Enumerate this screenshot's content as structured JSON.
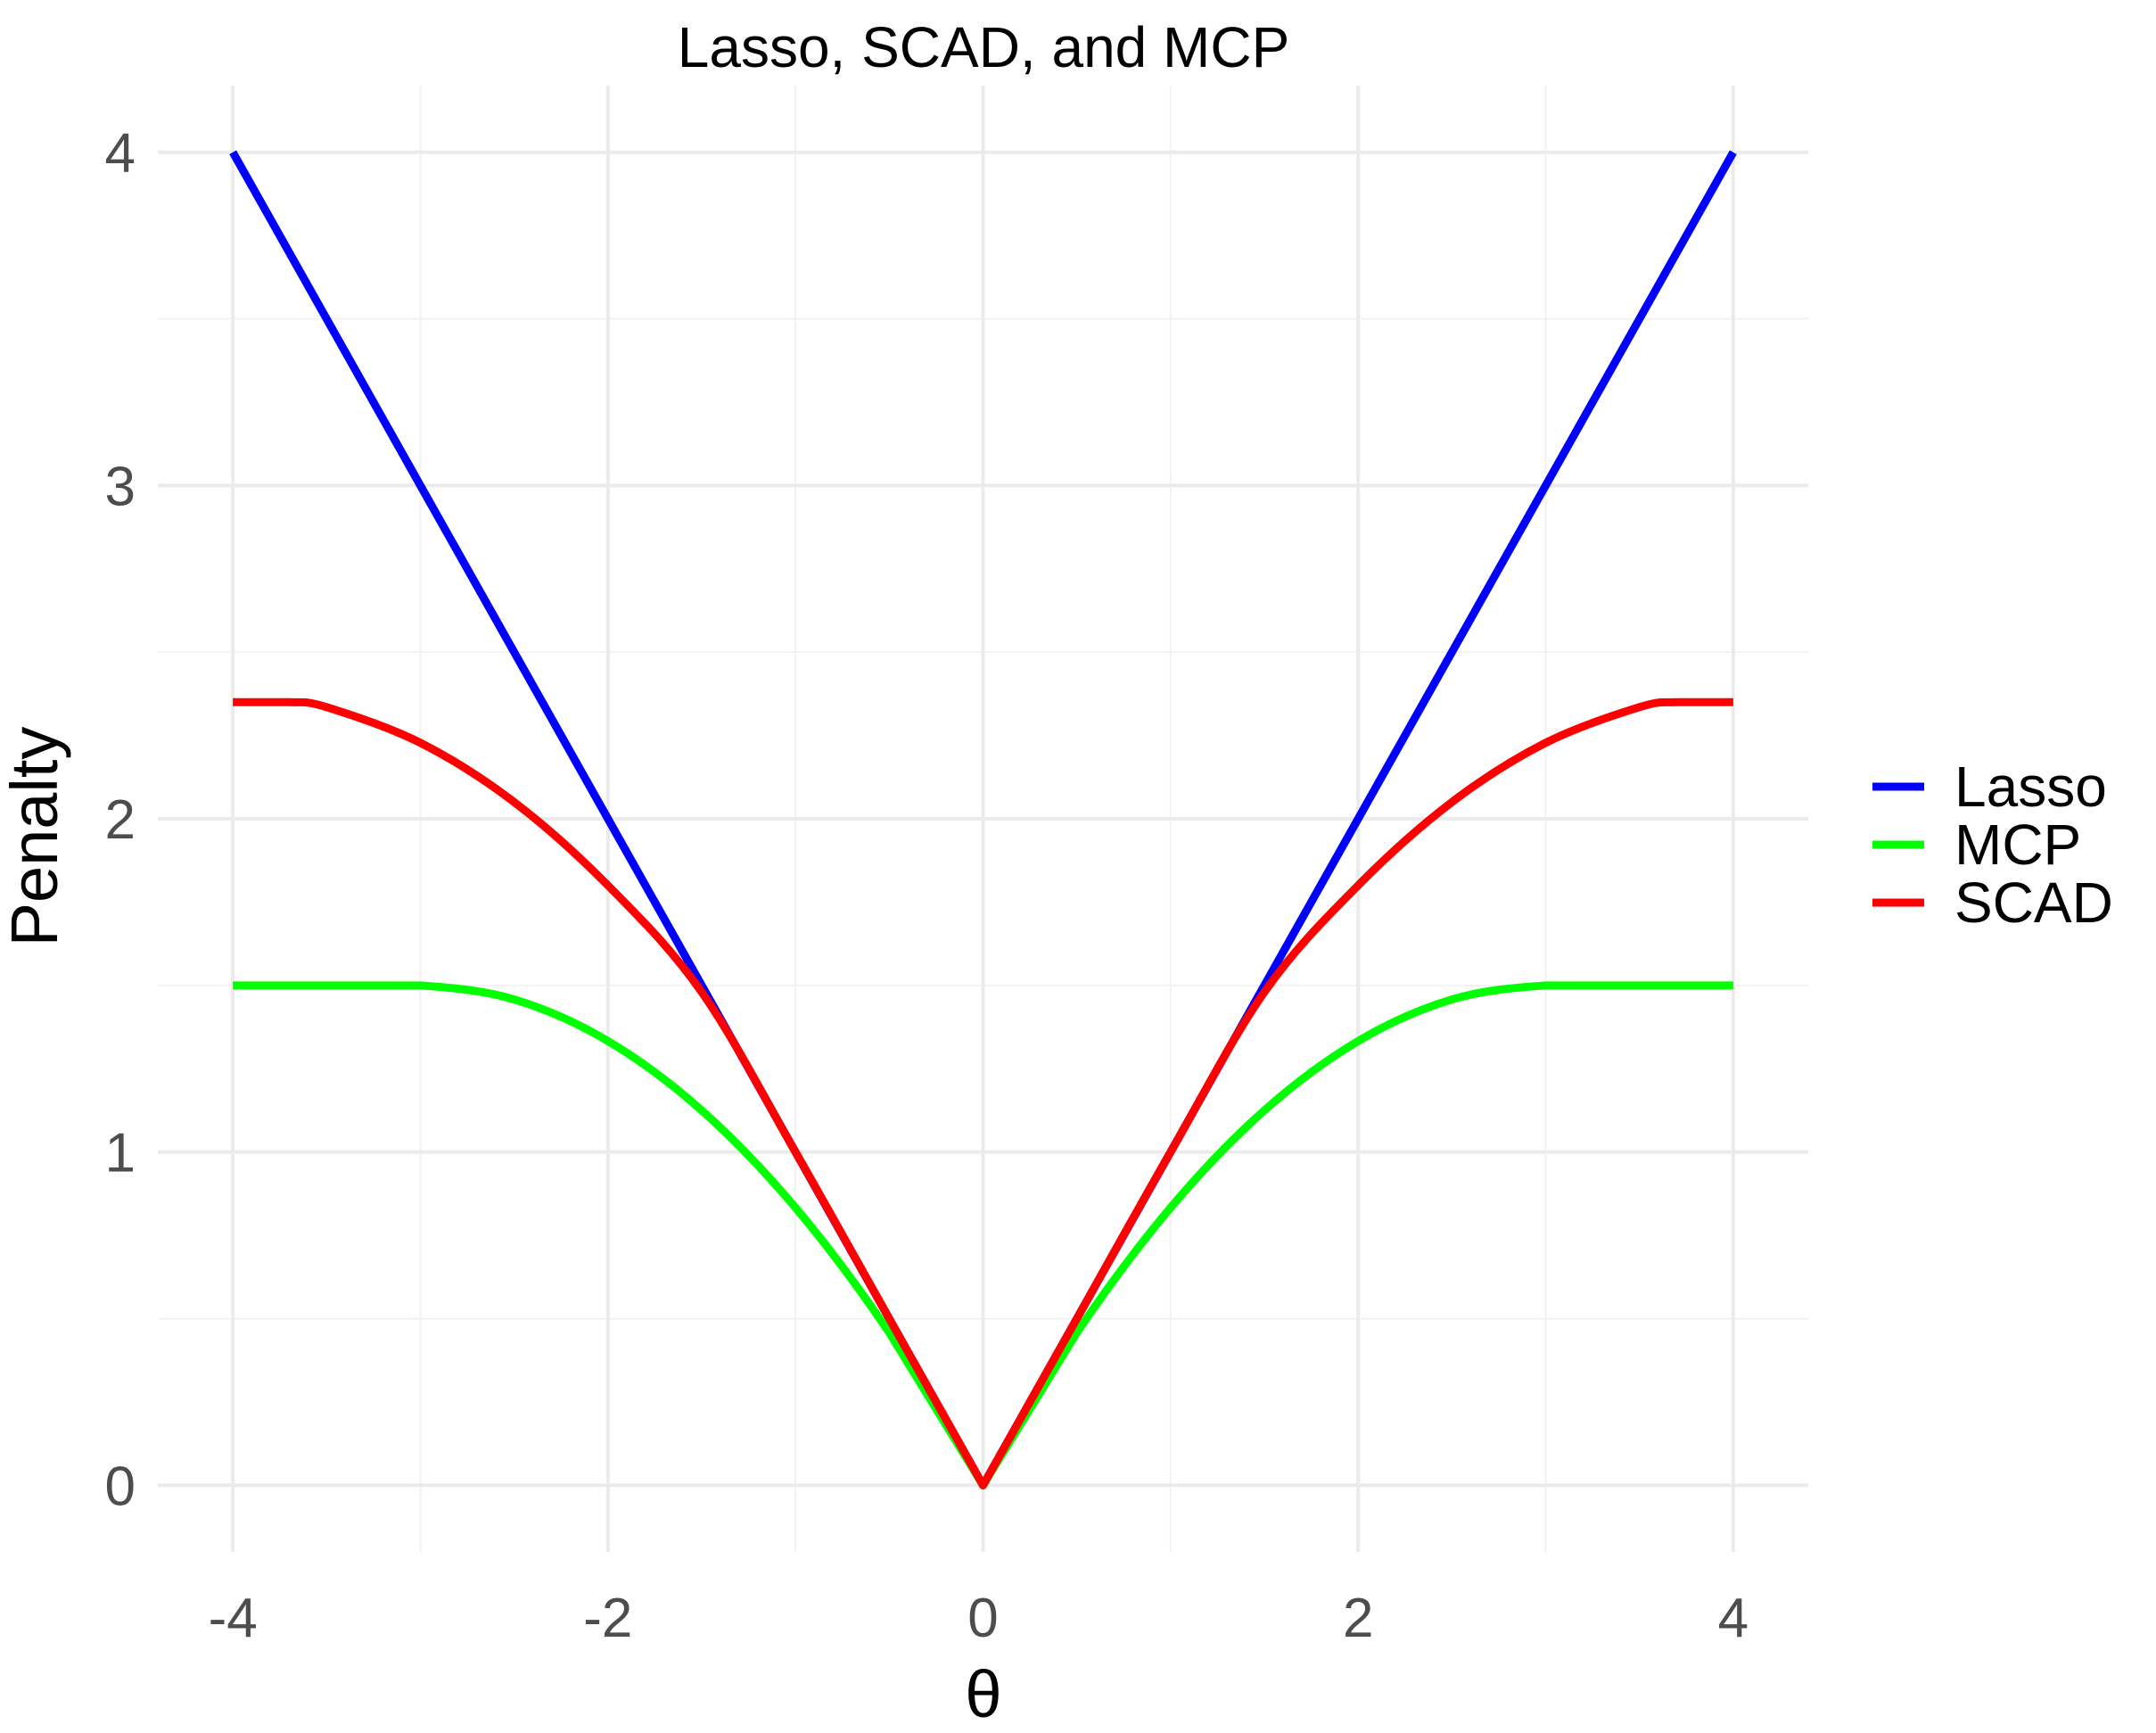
{
  "chart_data": {
    "type": "line",
    "title": "Lasso, SCAD, and MCP",
    "xlabel": "θ",
    "ylabel": "Penalty",
    "xlim": [
      -4.4,
      4.4
    ],
    "ylim": [
      -0.2,
      4.2
    ],
    "x_ticks": [
      -4,
      -2,
      0,
      2,
      4
    ],
    "x_tick_labels": [
      "-4",
      "-2",
      "0",
      "2",
      "4"
    ],
    "y_ticks": [
      0,
      1,
      2,
      3,
      4
    ],
    "y_tick_labels": [
      "0",
      "1",
      "2",
      "3",
      "4"
    ],
    "grid": true,
    "legend_position": "right",
    "series": [
      {
        "name": "Lasso",
        "color": "#0000ff",
        "x": [
          -4,
          -3,
          -2,
          -1,
          0,
          1,
          2,
          3,
          4
        ],
        "y": [
          4,
          3,
          2,
          1,
          0,
          1,
          2,
          3,
          4
        ]
      },
      {
        "name": "MCP",
        "color": "#00ff00",
        "x": [
          -4,
          -3.5,
          -3,
          -2.5,
          -2,
          -1.5,
          -1,
          -0.5,
          0,
          0.5,
          1,
          1.5,
          2,
          2.5,
          3,
          3.5,
          4
        ],
        "y": [
          1.5,
          1.5,
          1.5,
          1.458,
          1.333,
          1.125,
          0.833,
          0.458,
          0,
          0.458,
          0.833,
          1.125,
          1.333,
          1.458,
          1.5,
          1.5,
          1.5
        ]
      },
      {
        "name": "SCAD",
        "color": "#ff0000",
        "x": [
          -4,
          -3.7,
          -3.5,
          -3,
          -2.5,
          -2,
          -1.5,
          -1,
          -0.5,
          0,
          0.5,
          1,
          1.5,
          2,
          2.5,
          3,
          3.5,
          3.7,
          4
        ],
        "y": [
          2.35,
          2.35,
          2.335,
          2.228,
          2.05,
          1.8,
          1.48,
          1.0,
          0.5,
          0,
          0.5,
          1.0,
          1.48,
          1.8,
          2.05,
          2.228,
          2.335,
          2.35,
          2.35
        ]
      }
    ]
  }
}
